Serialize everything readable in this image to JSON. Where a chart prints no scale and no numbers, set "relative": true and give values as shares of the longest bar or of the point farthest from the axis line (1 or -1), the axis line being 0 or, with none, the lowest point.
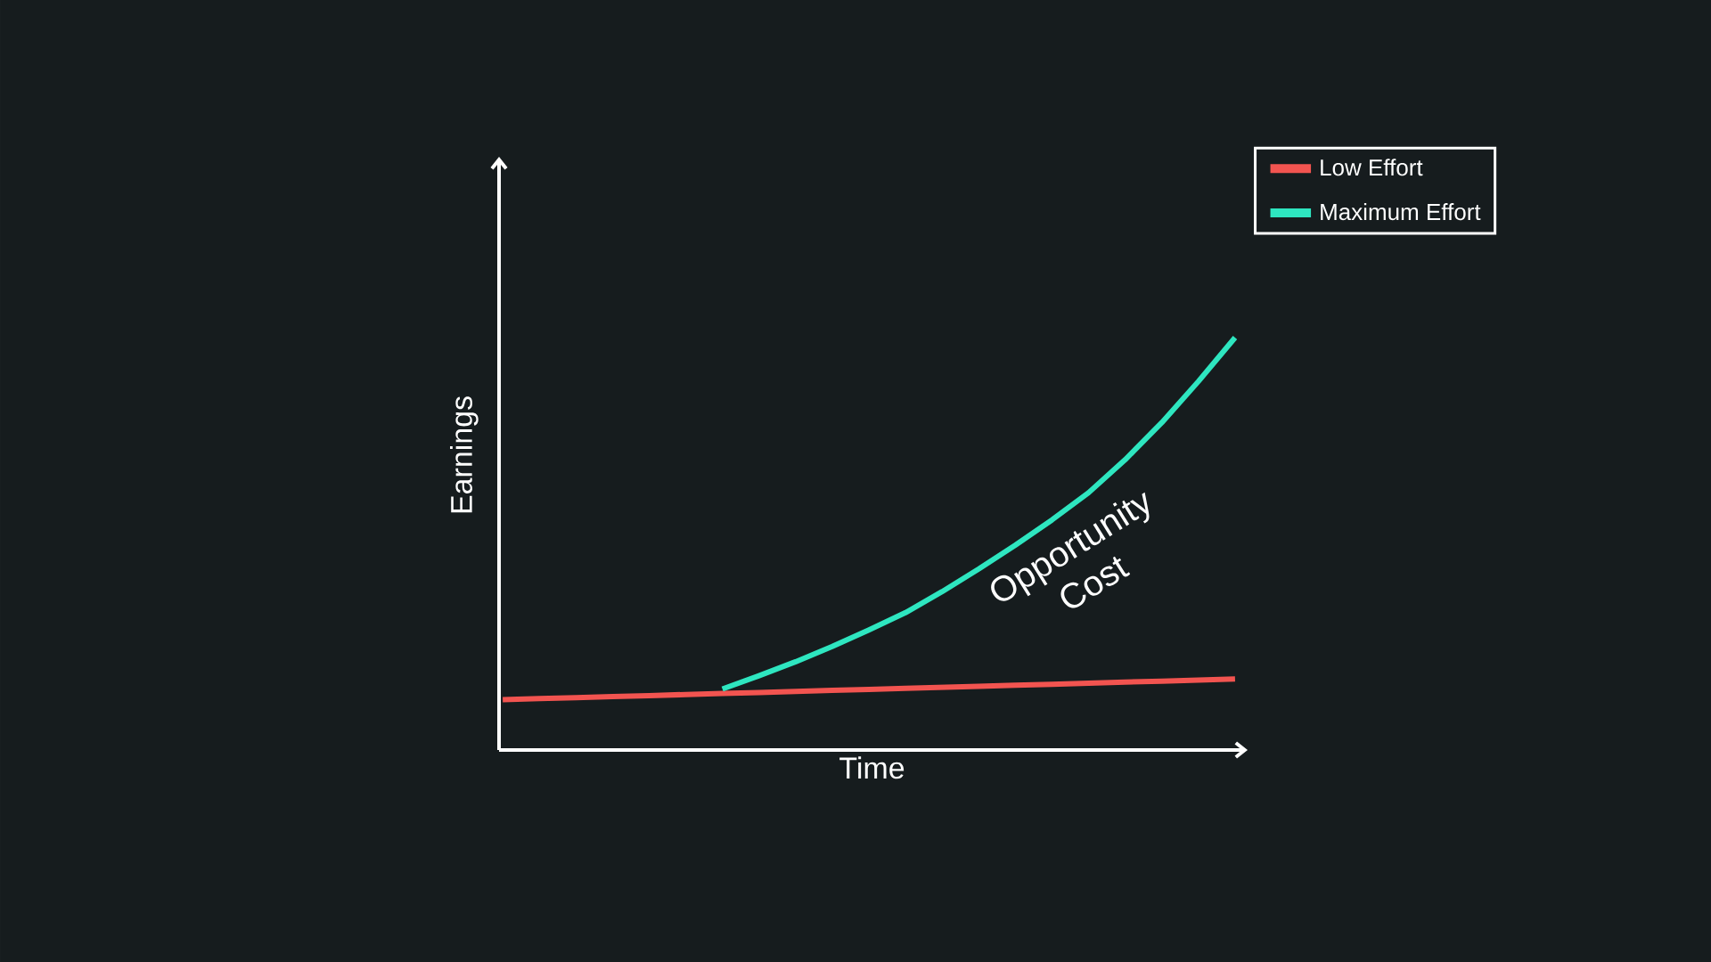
{
  "chart_data": {
    "type": "line",
    "relative": true,
    "xlabel": "Time",
    "ylabel": "Earnings",
    "categories": [
      null,
      null,
      null,
      null,
      null,
      null,
      null,
      null,
      null,
      null,
      null,
      null,
      null,
      null,
      null,
      null,
      null,
      null,
      null,
      null,
      null
    ],
    "series": [
      {
        "name": "Low Effort",
        "color": "#f25450",
        "values": [
          0.122,
          0.1245,
          0.127,
          0.1295,
          0.132,
          0.1345,
          0.137,
          0.1395,
          0.142,
          0.1445,
          0.147,
          0.1495,
          0.152,
          0.1545,
          0.157,
          0.1595,
          0.162,
          0.1645,
          0.167,
          0.1695,
          0.172
        ]
      },
      {
        "name": "Maximum Effort",
        "color": "#2ee6c0",
        "values": [
          null,
          null,
          null,
          null,
          null,
          null,
          0.148,
          0.18,
          0.214,
          0.251,
          0.291,
          0.333,
          0.384,
          0.439,
          0.497,
          0.558,
          0.624,
          0.704,
          0.794,
          0.894,
          1.0
        ]
      }
    ],
    "legend": "top right",
    "tick_labels": false,
    "marker": "none",
    "line_style": "solid",
    "annotations": [
      "Opportunity Cost"
    ]
  }
}
